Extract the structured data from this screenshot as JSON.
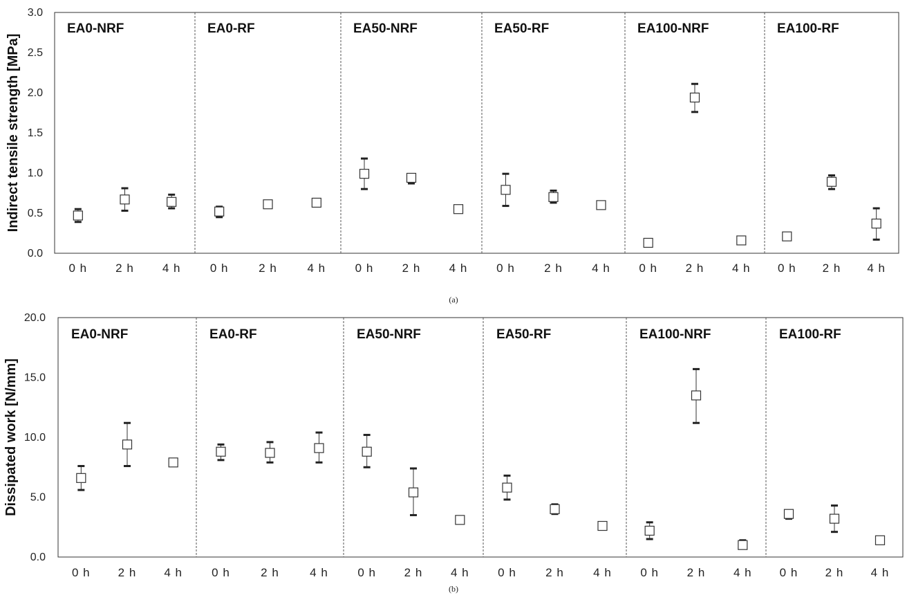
{
  "chart_data": [
    {
      "type": "scatter",
      "caption": "(a)",
      "ylabel": "Indirect tensile strength [MPa]",
      "ylim": [
        0,
        3
      ],
      "yticks": [
        "0.0",
        "0.5",
        "1.0",
        "1.5",
        "2.0",
        "2.5",
        "3.0"
      ],
      "grid": false,
      "groups": [
        "EA0-NRF",
        "EA0-RF",
        "EA50-NRF",
        "EA50-RF",
        "EA100-NRF",
        "EA100-RF"
      ],
      "x_labels": [
        "0 h",
        "2 h",
        "4 h"
      ],
      "points": [
        {
          "group": "EA0-NRF",
          "x": "0 h",
          "y": 0.47,
          "low": 0.39,
          "high": 0.55
        },
        {
          "group": "EA0-NRF",
          "x": "2 h",
          "y": 0.67,
          "low": 0.53,
          "high": 0.81
        },
        {
          "group": "EA0-NRF",
          "x": "4 h",
          "y": 0.64,
          "low": 0.56,
          "high": 0.73
        },
        {
          "group": "EA0-RF",
          "x": "0 h",
          "y": 0.52,
          "low": 0.45,
          "high": 0.58
        },
        {
          "group": "EA0-RF",
          "x": "2 h",
          "y": 0.61,
          "low": 0.58,
          "high": 0.65
        },
        {
          "group": "EA0-RF",
          "x": "4 h",
          "y": 0.63,
          "low": 0.59,
          "high": 0.66
        },
        {
          "group": "EA50-NRF",
          "x": "0 h",
          "y": 0.99,
          "low": 0.8,
          "high": 1.18
        },
        {
          "group": "EA50-NRF",
          "x": "2 h",
          "y": 0.94,
          "low": 0.87,
          "high": 0.98
        },
        {
          "group": "EA50-NRF",
          "x": "4 h",
          "y": 0.55,
          "low": 0.51,
          "high": 0.58
        },
        {
          "group": "EA50-RF",
          "x": "0 h",
          "y": 0.79,
          "low": 0.59,
          "high": 0.99
        },
        {
          "group": "EA50-RF",
          "x": "2 h",
          "y": 0.7,
          "low": 0.63,
          "high": 0.78
        },
        {
          "group": "EA50-RF",
          "x": "4 h",
          "y": 0.6,
          "low": 0.56,
          "high": 0.63
        },
        {
          "group": "EA100-NRF",
          "x": "0 h",
          "y": 0.13,
          "low": 0.1,
          "high": 0.16
        },
        {
          "group": "EA100-NRF",
          "x": "2 h",
          "y": 1.94,
          "low": 1.76,
          "high": 2.11
        },
        {
          "group": "EA100-NRF",
          "x": "4 h",
          "y": 0.16,
          "low": 0.13,
          "high": 0.19
        },
        {
          "group": "EA100-RF",
          "x": "0 h",
          "y": 0.21,
          "low": 0.18,
          "high": 0.24
        },
        {
          "group": "EA100-RF",
          "x": "2 h",
          "y": 0.89,
          "low": 0.8,
          "high": 0.97
        },
        {
          "group": "EA100-RF",
          "x": "4 h",
          "y": 0.37,
          "low": 0.17,
          "high": 0.56
        }
      ]
    },
    {
      "type": "scatter",
      "caption": "(b)",
      "ylabel": "Dissipated work [N/mm]",
      "ylim": [
        0,
        20
      ],
      "yticks": [
        "0.0",
        "5.0",
        "10.0",
        "15.0",
        "20.0"
      ],
      "grid": false,
      "groups": [
        "EA0-NRF",
        "EA0-RF",
        "EA50-NRF",
        "EA50-RF",
        "EA100-NRF",
        "EA100-RF"
      ],
      "x_labels": [
        "0 h",
        "2 h",
        "4 h"
      ],
      "points": [
        {
          "group": "EA0-NRF",
          "x": "0 h",
          "y": 6.6,
          "low": 5.6,
          "high": 7.6
        },
        {
          "group": "EA0-NRF",
          "x": "2 h",
          "y": 9.4,
          "low": 7.6,
          "high": 11.2
        },
        {
          "group": "EA0-NRF",
          "x": "4 h",
          "y": 7.9,
          "low": 7.7,
          "high": 8.1
        },
        {
          "group": "EA0-RF",
          "x": "0 h",
          "y": 8.8,
          "low": 8.1,
          "high": 9.4
        },
        {
          "group": "EA0-RF",
          "x": "2 h",
          "y": 8.7,
          "low": 7.9,
          "high": 9.6
        },
        {
          "group": "EA0-RF",
          "x": "4 h",
          "y": 9.1,
          "low": 7.9,
          "high": 10.4
        },
        {
          "group": "EA50-NRF",
          "x": "0 h",
          "y": 8.8,
          "low": 7.5,
          "high": 10.2
        },
        {
          "group": "EA50-NRF",
          "x": "2 h",
          "y": 5.4,
          "low": 3.5,
          "high": 7.4
        },
        {
          "group": "EA50-NRF",
          "x": "4 h",
          "y": 3.1,
          "low": 2.9,
          "high": 3.4
        },
        {
          "group": "EA50-RF",
          "x": "0 h",
          "y": 5.8,
          "low": 4.8,
          "high": 6.8
        },
        {
          "group": "EA50-RF",
          "x": "2 h",
          "y": 4.0,
          "low": 3.6,
          "high": 4.4
        },
        {
          "group": "EA50-RF",
          "x": "4 h",
          "y": 2.6,
          "low": 2.4,
          "high": 2.8
        },
        {
          "group": "EA100-NRF",
          "x": "0 h",
          "y": 2.2,
          "low": 1.5,
          "high": 2.9
        },
        {
          "group": "EA100-NRF",
          "x": "2 h",
          "y": 13.5,
          "low": 11.2,
          "high": 15.7
        },
        {
          "group": "EA100-NRF",
          "x": "4 h",
          "y": 1.0,
          "low": 0.7,
          "high": 1.4
        },
        {
          "group": "EA100-RF",
          "x": "0 h",
          "y": 3.6,
          "low": 3.2,
          "high": 3.9
        },
        {
          "group": "EA100-RF",
          "x": "2 h",
          "y": 3.2,
          "low": 2.1,
          "high": 4.3
        },
        {
          "group": "EA100-RF",
          "x": "4 h",
          "y": 1.4,
          "low": 1.2,
          "high": 1.6
        }
      ]
    }
  ]
}
